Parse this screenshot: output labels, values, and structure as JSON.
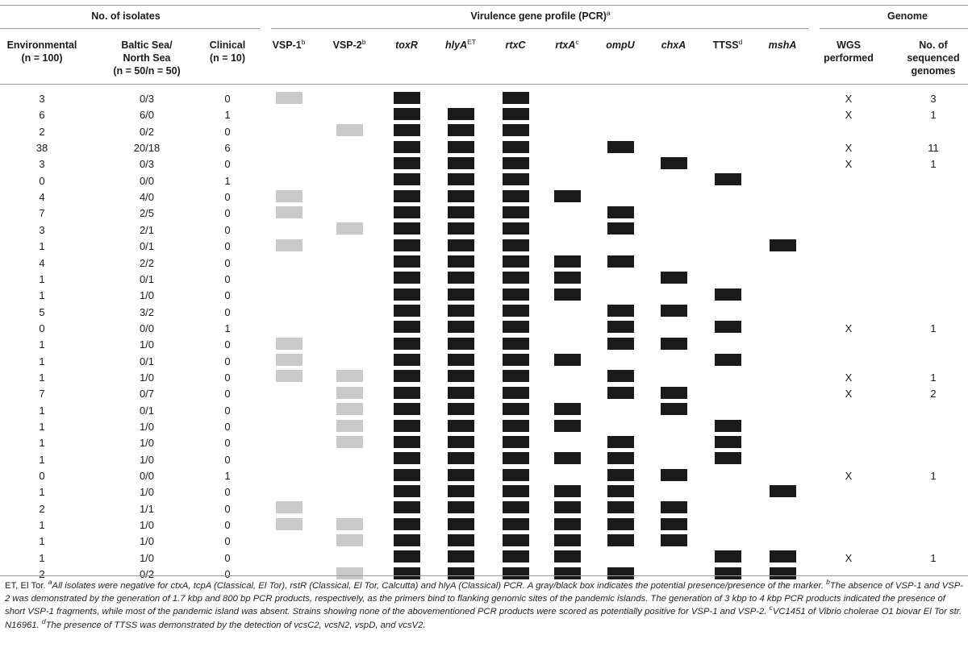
{
  "group_headers": {
    "isolates": "No. of isolates",
    "virulence": "Virulence gene profile (PCR)",
    "virulence_sup": "a",
    "genome": "Genome"
  },
  "columns": [
    {
      "key": "env",
      "lines": [
        "Environmental",
        "(n = 100)"
      ]
    },
    {
      "key": "baltic",
      "lines": [
        "Baltic Sea/",
        "North Sea",
        "(n = 50/n = 50)"
      ]
    },
    {
      "key": "clin",
      "lines": [
        "Clinical",
        "(n = 10)"
      ]
    },
    {
      "key": "vsp1",
      "lines": [
        "VSP-1"
      ],
      "sup": "b",
      "italic": false
    },
    {
      "key": "vsp2",
      "lines": [
        "VSP-2"
      ],
      "sup": "b",
      "italic": false
    },
    {
      "key": "toxr",
      "lines": [
        "toxR"
      ],
      "italic": true
    },
    {
      "key": "hlya",
      "lines": [
        "hlyA"
      ],
      "sup": "ET",
      "italic": true
    },
    {
      "key": "rtxc",
      "lines": [
        "rtxC"
      ],
      "italic": true
    },
    {
      "key": "rtxa",
      "lines": [
        "rtxA"
      ],
      "sup": "c",
      "italic": true
    },
    {
      "key": "ompu",
      "lines": [
        "ompU"
      ],
      "italic": true
    },
    {
      "key": "chxa",
      "lines": [
        "chxA"
      ],
      "italic": true
    },
    {
      "key": "ttss",
      "lines": [
        "TTSS"
      ],
      "sup": "d",
      "italic": false
    },
    {
      "key": "msha",
      "lines": [
        "mshA"
      ],
      "italic": true
    },
    {
      "key": "wgs",
      "lines": [
        "WGS",
        "performed"
      ]
    },
    {
      "key": "nseq",
      "lines": [
        "No. of",
        "sequenced",
        "genomes"
      ]
    }
  ],
  "marker_legend": {
    "g": "potential presence",
    "b": "presence"
  },
  "rows": [
    {
      "env": "3",
      "baltic": "0/3",
      "clin": "0",
      "markers": "g.b.b....",
      "wgs": "X",
      "nseq": "3"
    },
    {
      "env": "6",
      "baltic": "6/0",
      "clin": "1",
      "markers": "..bbb....",
      "wgs": "X",
      "nseq": "1"
    },
    {
      "env": "2",
      "baltic": "0/2",
      "clin": "0",
      "markers": ".gbbb....",
      "wgs": "",
      "nseq": ""
    },
    {
      "env": "38",
      "baltic": "20/18",
      "clin": "6",
      "markers": "..bbb.b..",
      "wgs": "X",
      "nseq": "11"
    },
    {
      "env": "3",
      "baltic": "0/3",
      "clin": "0",
      "markers": "..bbb..b.",
      "wgs": "X",
      "nseq": "1"
    },
    {
      "env": "0",
      "baltic": "0/0",
      "clin": "1",
      "markers": "..bbb...b",
      "wgs": "",
      "nseq": ""
    },
    {
      "env": "4",
      "baltic": "4/0",
      "clin": "0",
      "markers": "g.bbbb...",
      "wgs": "",
      "nseq": ""
    },
    {
      "env": "7",
      "baltic": "2/5",
      "clin": "0",
      "markers": "g.bbb.b..",
      "wgs": "",
      "nseq": ""
    },
    {
      "env": "3",
      "baltic": "2/1",
      "clin": "0",
      "markers": ".gbbb.b..",
      "wgs": "",
      "nseq": ""
    },
    {
      "env": "1",
      "baltic": "0/1",
      "clin": "0",
      "markers": "g.bbb....b",
      "wgs": "",
      "nseq": ""
    },
    {
      "env": "4",
      "baltic": "2/2",
      "clin": "0",
      "markers": "..bbbbb..",
      "wgs": "",
      "nseq": ""
    },
    {
      "env": "1",
      "baltic": "0/1",
      "clin": "0",
      "markers": "..bbbb.b.",
      "wgs": "",
      "nseq": ""
    },
    {
      "env": "1",
      "baltic": "1/0",
      "clin": "0",
      "markers": "..bbbb..b",
      "wgs": "",
      "nseq": ""
    },
    {
      "env": "5",
      "baltic": "3/2",
      "clin": "0",
      "markers": "..bbb.bb.",
      "wgs": "",
      "nseq": ""
    },
    {
      "env": "0",
      "baltic": "0/0",
      "clin": "1",
      "markers": "..bbb.b.b",
      "wgs": "X",
      "nseq": "1"
    },
    {
      "env": "1",
      "baltic": "1/0",
      "clin": "0",
      "markers": "g.bbb.bb.",
      "wgs": "",
      "nseq": ""
    },
    {
      "env": "1",
      "baltic": "0/1",
      "clin": "0",
      "markers": "g.bbbb..b",
      "wgs": "",
      "nseq": ""
    },
    {
      "env": "1",
      "baltic": "1/0",
      "clin": "0",
      "markers": "ggbbb.b..",
      "wgs": "X",
      "nseq": "1"
    },
    {
      "env": "7",
      "baltic": "0/7",
      "clin": "0",
      "markers": ".gbbb.bb.",
      "wgs": "X",
      "nseq": "2"
    },
    {
      "env": "1",
      "baltic": "0/1",
      "clin": "0",
      "markers": ".gbbbb.b.",
      "wgs": "",
      "nseq": ""
    },
    {
      "env": "1",
      "baltic": "1/0",
      "clin": "0",
      "markers": ".gbbbb..b",
      "wgs": "",
      "nseq": ""
    },
    {
      "env": "1",
      "baltic": "1/0",
      "clin": "0",
      "markers": ".gbbb.b.b",
      "wgs": "",
      "nseq": ""
    },
    {
      "env": "1",
      "baltic": "1/0",
      "clin": "0",
      "markers": "..bbbbb.b",
      "wgs": "",
      "nseq": ""
    },
    {
      "env": "0",
      "baltic": "0/0",
      "clin": "1",
      "markers": "..bbb.bb.",
      "wgs": "X",
      "nseq": "1"
    },
    {
      "env": "1",
      "baltic": "1/0",
      "clin": "0",
      "markers": "..bbbbb..b",
      "wgs": "",
      "nseq": ""
    },
    {
      "env": "2",
      "baltic": "1/1",
      "clin": "0",
      "markers": "g.bbbbbb.",
      "wgs": "",
      "nseq": ""
    },
    {
      "env": "1",
      "baltic": "1/0",
      "clin": "0",
      "markers": "ggbbbbbb.",
      "wgs": "",
      "nseq": ""
    },
    {
      "env": "1",
      "baltic": "1/0",
      "clin": "0",
      "markers": ".gbbbbbb.",
      "wgs": "",
      "nseq": ""
    },
    {
      "env": "1",
      "baltic": "1/0",
      "clin": "0",
      "markers": "..bbbb..bb",
      "wgs": "X",
      "nseq": "1"
    },
    {
      "env": "2",
      "baltic": "0/2",
      "clin": "0",
      "markers": ".gbbbbb.bb",
      "wgs": "",
      "nseq": ""
    }
  ],
  "footnote": {
    "et": "ET, El Tor.",
    "a_mark": "a",
    "a": "All isolates were negative for ctxA, tcpA (Classical, El Tor), rstR (Classical, El Tor, Calcutta) and hlyA (Classical) PCR. A gray/black box indicates the potential presence/presence of the marker.",
    "b_mark": "b",
    "b": "The absence of VSP-1 and VSP-2 was demonstrated by the generation of 1.7 kbp and 800 bp PCR products, respectively, as the primers bind to flanking genomic sites of the pandemic islands. The generation of 3 kbp to 4 kbp PCR products indicated the presence of short VSP-1 fragments, while most of the pandemic island was absent. Strains showing none of the abovementioned PCR products were scored as potentially positive for VSP-1 and VSP-2.",
    "c_mark": "c",
    "c": "VC1451 of Vibrio cholerae O1 biovar El Tor str. N16961.",
    "d_mark": "d",
    "d": "The presence of TTSS was demonstrated by the detection of vcsC2, vcsN2, vspD, and vcsV2."
  }
}
